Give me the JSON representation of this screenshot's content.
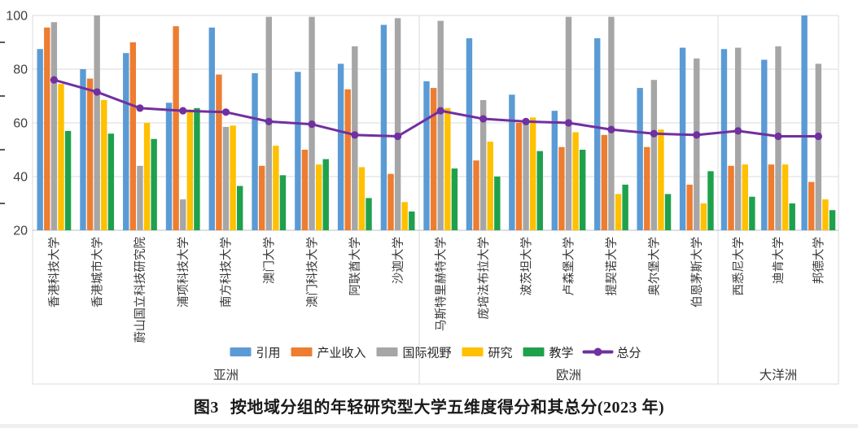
{
  "figure": {
    "caption_fig": "图3",
    "caption_text": "按地域分组的年轻研究型大学五维度得分和其总分(2023 年)"
  },
  "chart_data": {
    "type": "bar",
    "title": "按地域分组的年轻研究型大学五维度得分和其总分(2023年)",
    "xlabel": "",
    "ylabel": "",
    "ylim": [
      20,
      100
    ],
    "yticks": [
      100,
      80,
      60,
      40,
      20
    ],
    "minor_yticks": [
      90,
      70,
      50,
      30
    ],
    "grid": true,
    "legend_position": "bottom",
    "regions": [
      {
        "label": "亚洲",
        "count": 9
      },
      {
        "label": "欧洲",
        "count": 7
      },
      {
        "label": "大洋洲",
        "count": 3
      }
    ],
    "categories": [
      "香港科技大学",
      "香港城市大学",
      "蔚山国立科技研究院",
      "浦项科技大学",
      "南方科技大学",
      "澳门大学",
      "澳门科技大学",
      "阿联酋大学",
      "沙迦大学",
      "马斯特里赫特大学",
      "庞培法布拉大学",
      "波茨坦大学",
      "卢森堡大学",
      "提契诺大学",
      "奥尔堡大学",
      "伯恩茅斯大学",
      "西悉尼大学",
      "迪肯大学",
      "邦德大学"
    ],
    "series": [
      {
        "name": "引用",
        "kind": "bar",
        "color": "#5B9BD5",
        "values": [
          87.5,
          80,
          86,
          67.5,
          95.5,
          78.5,
          79,
          82,
          96.5,
          75.5,
          91.5,
          70.5,
          64.5,
          91.5,
          73,
          88,
          87.5,
          83.5,
          100
        ]
      },
      {
        "name": "产业收入",
        "kind": "bar",
        "color": "#ED7D31",
        "values": [
          95.5,
          76.5,
          90,
          96,
          78,
          44,
          50,
          72.5,
          41,
          73,
          46,
          60,
          51,
          55.5,
          51,
          37,
          44,
          44.5,
          38
        ]
      },
      {
        "name": "国际视野",
        "kind": "bar",
        "color": "#A6A6A6",
        "values": [
          97.5,
          100,
          44,
          31.5,
          58.5,
          99.5,
          99.5,
          88.5,
          99,
          98,
          68.5,
          61,
          99.5,
          99.5,
          76,
          84,
          88,
          88.5,
          82
        ]
      },
      {
        "name": "研究",
        "kind": "bar",
        "color": "#FFC000",
        "values": [
          74.5,
          68.5,
          60,
          65,
          59,
          51.5,
          44.5,
          43.5,
          30.5,
          65.5,
          53,
          62,
          56.5,
          33.5,
          57.5,
          30,
          44.5,
          44.5,
          31.5
        ]
      },
      {
        "name": "教学",
        "kind": "bar",
        "color": "#1FA14C",
        "values": [
          57,
          56,
          54,
          65.5,
          36.5,
          40.5,
          46.5,
          32,
          27,
          43,
          40,
          49.5,
          50,
          37,
          33.5,
          42,
          32.5,
          30,
          27.5
        ]
      },
      {
        "name": "总分",
        "kind": "line",
        "color": "#7030A0",
        "values": [
          76,
          71.5,
          65.5,
          64.5,
          64,
          60.5,
          59.5,
          55.5,
          55,
          64.5,
          61.5,
          60.5,
          60,
          57.5,
          56,
          55.5,
          57,
          55,
          55
        ]
      }
    ],
    "colors": {
      "gridline": "#DBDBDB",
      "axis_line": "#BFBFBF",
      "tick_text": "#3F3F3F",
      "label_text": "#383838"
    }
  }
}
